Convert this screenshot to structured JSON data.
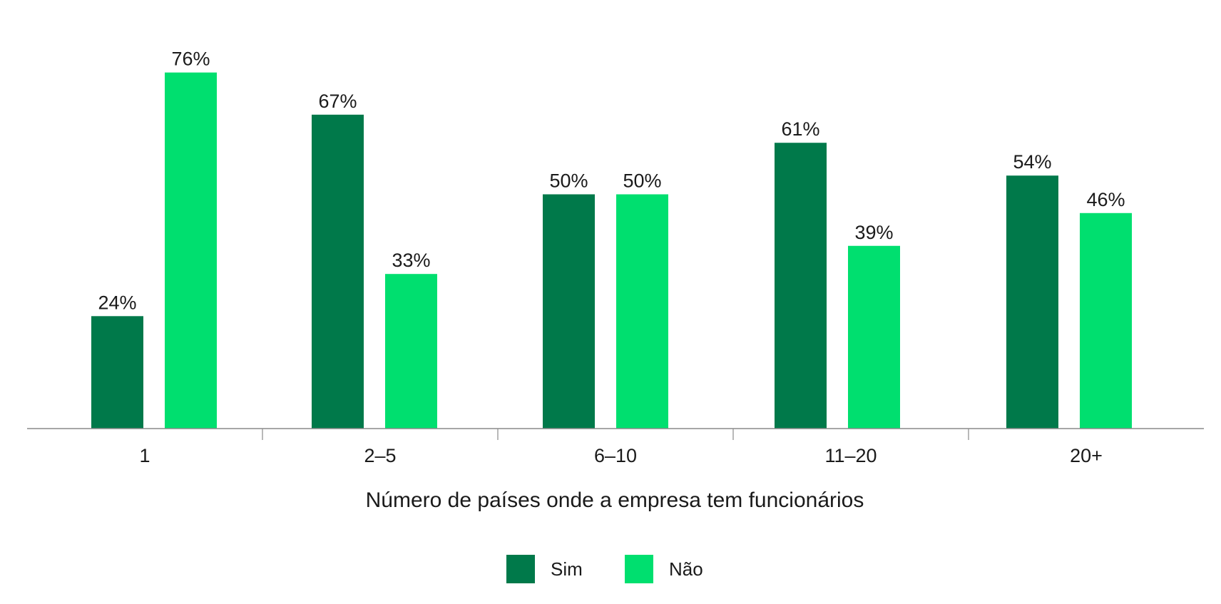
{
  "chart_data": {
    "type": "bar",
    "categories": [
      "1",
      "2–5",
      "6–10",
      "11–20",
      "20+"
    ],
    "series": [
      {
        "name": "Sim",
        "values": [
          24,
          67,
          50,
          61,
          54
        ],
        "labels": [
          "24%",
          "67%",
          "50%",
          "61%",
          "54%"
        ],
        "color": "#00794a"
      },
      {
        "name": "Não",
        "values": [
          76,
          33,
          50,
          39,
          46
        ],
        "labels": [
          "76%",
          "33%",
          "50%",
          "39%",
          "46%"
        ],
        "color": "#00df6f"
      }
    ],
    "title": "",
    "xlabel": "Número de países onde a empresa tem funcionários",
    "ylabel": "",
    "ylim": [
      0,
      80
    ],
    "grid": false,
    "legend_position": "bottom-center",
    "axis_color": "#8a8a8a"
  }
}
